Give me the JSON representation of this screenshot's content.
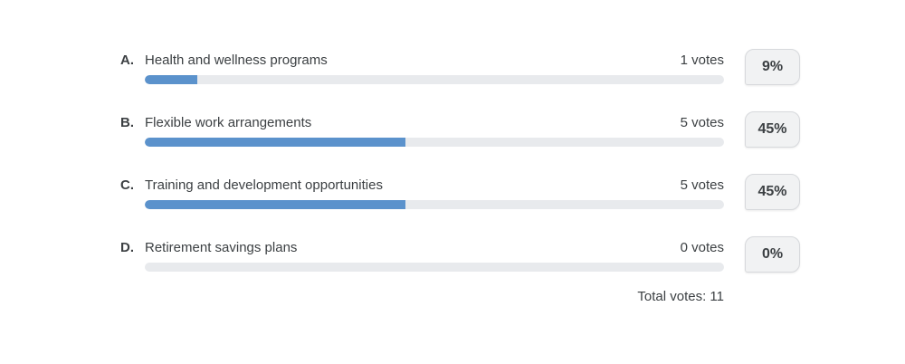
{
  "poll": {
    "options": [
      {
        "letter": "A.",
        "label": "Health and wellness programs",
        "votes_text": "1 votes",
        "percent": 9,
        "percent_text": "9%"
      },
      {
        "letter": "B.",
        "label": "Flexible work arrangements",
        "votes_text": "5 votes",
        "percent": 45,
        "percent_text": "45%"
      },
      {
        "letter": "C.",
        "label": "Training and development opportunities",
        "votes_text": "5 votes",
        "percent": 45,
        "percent_text": "45%"
      },
      {
        "letter": "D.",
        "label": "Retirement savings plans",
        "votes_text": "0 votes",
        "percent": 0,
        "percent_text": "0%"
      }
    ],
    "total_votes_text": "Total votes: 11"
  },
  "chart_data": {
    "type": "bar",
    "orientation": "horizontal",
    "categories": [
      "Health and wellness programs",
      "Flexible work arrangements",
      "Training and development opportunities",
      "Retirement savings plans"
    ],
    "series": [
      {
        "name": "votes",
        "values": [
          1,
          5,
          5,
          0
        ]
      },
      {
        "name": "percent",
        "values": [
          9,
          45,
          45,
          0
        ]
      }
    ],
    "title": "",
    "xlabel": "",
    "ylabel": "",
    "xlim": [
      0,
      100
    ],
    "grid": false,
    "legend": false,
    "annotations": [
      "Total votes: 11"
    ]
  },
  "colors": {
    "text": "#3c4043",
    "bar_fill": "#5b92cc",
    "bar_track": "#e8eaed",
    "badge_bg": "#f1f2f3",
    "badge_border": "#d7d9dc"
  }
}
